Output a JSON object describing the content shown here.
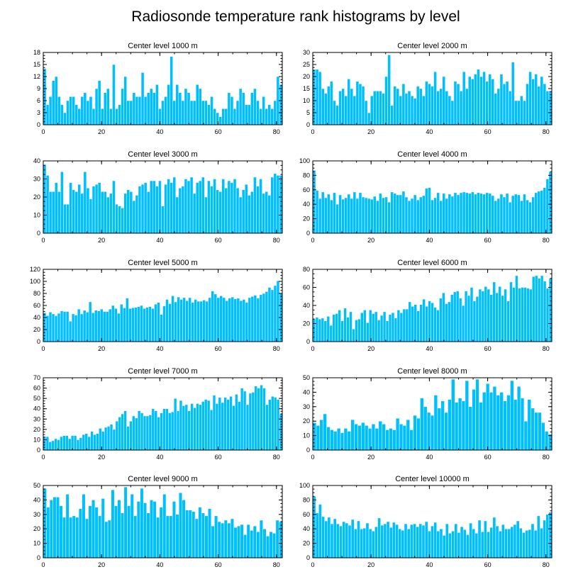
{
  "figure_title": "Radiosonde temperature rank histograms by level",
  "colors": {
    "bar": "#00bfff",
    "axis": "#000000",
    "background": "#ffffff"
  },
  "chart_data": [
    {
      "type": "bar",
      "title": "Center level 1000 m",
      "xlim": [
        0,
        82
      ],
      "ylim": [
        0,
        18
      ],
      "xticks": [
        0,
        20,
        40,
        60,
        80
      ],
      "yticks": [
        0,
        3,
        6,
        9,
        12,
        15,
        18
      ],
      "values": [
        14,
        5,
        7,
        11,
        12,
        7,
        5,
        3,
        6,
        7,
        7,
        5,
        4,
        7,
        8,
        6,
        7,
        4,
        9,
        11,
        4,
        8,
        9,
        4,
        15,
        4,
        5,
        9,
        12,
        6,
        6,
        8,
        7,
        7,
        13,
        7,
        8,
        9,
        8,
        10,
        4,
        6,
        7,
        10,
        17,
        6,
        10,
        8,
        6,
        9,
        8,
        6,
        6,
        10,
        9,
        6,
        6,
        5,
        7,
        4,
        3,
        2,
        4,
        4,
        8,
        7,
        4,
        6,
        9,
        8,
        5,
        5,
        8,
        9,
        6,
        4,
        7,
        4,
        5,
        4,
        6,
        12,
        10
      ]
    },
    {
      "type": "bar",
      "title": "Center level 2000 m",
      "xlim": [
        0,
        82
      ],
      "ylim": [
        0,
        30
      ],
      "xticks": [
        0,
        20,
        40,
        60,
        80
      ],
      "yticks": [
        0,
        5,
        10,
        15,
        20,
        25,
        30
      ],
      "values": [
        23,
        23,
        22,
        15,
        13,
        16,
        18,
        10,
        8,
        14,
        15,
        12,
        19,
        15,
        12,
        18,
        17,
        16,
        10,
        5,
        12,
        14,
        14,
        14,
        13,
        20,
        29,
        8,
        16,
        15,
        12,
        17,
        13,
        14,
        12,
        11,
        16,
        15,
        12,
        18,
        17,
        16,
        22,
        14,
        15,
        20,
        14,
        12,
        10,
        18,
        17,
        14,
        22,
        15,
        20,
        19,
        21,
        23,
        20,
        22,
        18,
        21,
        19,
        13,
        15,
        21,
        17,
        18,
        14,
        26,
        10,
        10,
        12,
        10,
        17,
        22,
        19,
        21,
        16,
        20,
        17,
        14,
        14
      ]
    },
    {
      "type": "bar",
      "title": "Center level 3000 m",
      "xlim": [
        0,
        82
      ],
      "ylim": [
        0,
        40
      ],
      "xticks": [
        0,
        20,
        40,
        60,
        80
      ],
      "yticks": [
        0,
        10,
        20,
        30,
        40
      ],
      "values": [
        38,
        32,
        23,
        23,
        28,
        23,
        34,
        16,
        16,
        28,
        24,
        23,
        27,
        22,
        34,
        25,
        19,
        26,
        27,
        28,
        23,
        23,
        20,
        22,
        29,
        16,
        15,
        14,
        22,
        24,
        23,
        18,
        21,
        26,
        27,
        28,
        23,
        29,
        29,
        26,
        29,
        15,
        27,
        30,
        28,
        31,
        20,
        25,
        26,
        30,
        29,
        31,
        22,
        28,
        29,
        31,
        20,
        29,
        26,
        30,
        24,
        23,
        30,
        25,
        29,
        28,
        30,
        25,
        20,
        24,
        27,
        21,
        23,
        31,
        26,
        30,
        22,
        23,
        21,
        31,
        33,
        32,
        32
      ]
    },
    {
      "type": "bar",
      "title": "Center level 4000 m",
      "xlim": [
        0,
        82
      ],
      "ylim": [
        0,
        100
      ],
      "xticks": [
        0,
        20,
        40,
        60,
        80
      ],
      "yticks": [
        0,
        20,
        40,
        60,
        80,
        100
      ],
      "values": [
        87,
        59,
        48,
        57,
        49,
        54,
        46,
        56,
        40,
        53,
        47,
        49,
        54,
        48,
        57,
        48,
        56,
        50,
        49,
        48,
        47,
        51,
        45,
        55,
        49,
        50,
        43,
        57,
        55,
        53,
        53,
        58,
        50,
        45,
        48,
        53,
        46,
        50,
        52,
        62,
        63,
        46,
        49,
        56,
        45,
        55,
        48,
        54,
        51,
        56,
        53,
        56,
        57,
        56,
        55,
        57,
        54,
        56,
        55,
        54,
        56,
        55,
        52,
        45,
        48,
        54,
        50,
        55,
        43,
        52,
        54,
        53,
        45,
        54,
        46,
        43,
        50,
        56,
        58,
        59,
        63,
        75,
        85
      ]
    },
    {
      "type": "bar",
      "title": "Center level 5000 m",
      "xlim": [
        0,
        82
      ],
      "ylim": [
        0,
        120
      ],
      "xticks": [
        0,
        20,
        40,
        60,
        80
      ],
      "yticks": [
        0,
        20,
        40,
        60,
        80,
        100,
        120
      ],
      "values": [
        48,
        43,
        49,
        46,
        43,
        47,
        51,
        50,
        50,
        34,
        46,
        44,
        54,
        46,
        52,
        49,
        66,
        48,
        52,
        51,
        54,
        50,
        50,
        54,
        60,
        55,
        47,
        62,
        56,
        72,
        55,
        56,
        57,
        58,
        60,
        55,
        57,
        58,
        55,
        62,
        65,
        45,
        59,
        70,
        63,
        76,
        66,
        74,
        70,
        73,
        68,
        73,
        65,
        70,
        67,
        67,
        69,
        67,
        73,
        84,
        79,
        73,
        76,
        73,
        68,
        72,
        74,
        71,
        72,
        68,
        70,
        65,
        73,
        75,
        77,
        72,
        78,
        80,
        83,
        90,
        86,
        93,
        101,
        80
      ]
    },
    {
      "type": "bar",
      "title": "Center level 6000 m",
      "xlim": [
        0,
        82
      ],
      "ylim": [
        0,
        80
      ],
      "xticks": [
        0,
        20,
        40,
        60,
        80
      ],
      "yticks": [
        0,
        20,
        40,
        60,
        80
      ],
      "values": [
        25,
        27,
        25,
        26,
        23,
        28,
        18,
        30,
        31,
        35,
        23,
        37,
        27,
        33,
        14,
        24,
        25,
        32,
        35,
        21,
        35,
        31,
        33,
        24,
        29,
        33,
        23,
        30,
        32,
        26,
        35,
        32,
        36,
        36,
        44,
        39,
        41,
        34,
        41,
        47,
        39,
        45,
        43,
        38,
        35,
        48,
        54,
        42,
        44,
        52,
        55,
        56,
        48,
        40,
        56,
        51,
        60,
        45,
        50,
        58,
        56,
        61,
        58,
        52,
        66,
        54,
        61,
        51,
        58,
        45,
        66,
        60,
        73,
        59,
        60,
        60,
        59,
        58,
        72,
        73,
        70,
        73,
        67,
        59,
        70
      ]
    },
    {
      "type": "bar",
      "title": "Center level 7000 m",
      "xlim": [
        0,
        82
      ],
      "ylim": [
        0,
        70
      ],
      "xticks": [
        0,
        20,
        40,
        60,
        80
      ],
      "yticks": [
        0,
        10,
        20,
        30,
        40,
        50,
        60,
        70
      ],
      "values": [
        13,
        13,
        8,
        9,
        11,
        10,
        13,
        14,
        14,
        11,
        14,
        14,
        10,
        12,
        15,
        16,
        13,
        18,
        15,
        16,
        21,
        18,
        22,
        23,
        25,
        20,
        28,
        32,
        35,
        38,
        23,
        28,
        33,
        31,
        38,
        36,
        33,
        33,
        34,
        40,
        38,
        32,
        36,
        40,
        40,
        36,
        37,
        50,
        38,
        48,
        43,
        44,
        38,
        45,
        41,
        45,
        44,
        47,
        49,
        48,
        39,
        53,
        45,
        51,
        46,
        51,
        49,
        52,
        43,
        54,
        47,
        60,
        57,
        44,
        55,
        56,
        62,
        60,
        63,
        60,
        44,
        49,
        52,
        51,
        49,
        35
      ]
    },
    {
      "type": "bar",
      "title": "Center level 8000 m",
      "xlim": [
        0,
        82
      ],
      "ylim": [
        0,
        50
      ],
      "xticks": [
        0,
        20,
        40,
        60,
        80
      ],
      "yticks": [
        0,
        10,
        20,
        30,
        40,
        50
      ],
      "values": [
        19,
        17,
        21,
        25,
        16,
        14,
        13,
        15,
        12,
        15,
        13,
        21,
        18,
        17,
        19,
        17,
        15,
        18,
        15,
        20,
        18,
        14,
        15,
        14,
        22,
        18,
        17,
        21,
        14,
        24,
        22,
        36,
        30,
        26,
        24,
        38,
        29,
        34,
        26,
        35,
        49,
        33,
        36,
        34,
        48,
        30,
        42,
        49,
        33,
        40,
        46,
        40,
        44,
        38,
        40,
        34,
        38,
        48,
        35,
        44,
        36,
        20,
        35,
        29,
        26,
        26,
        19,
        13,
        11
      ]
    },
    {
      "type": "bar",
      "title": "Center level 9000 m",
      "xlim": [
        0,
        82
      ],
      "ylim": [
        0,
        50
      ],
      "xticks": [
        0,
        20,
        40,
        60,
        80
      ],
      "yticks": [
        0,
        10,
        20,
        30,
        40,
        50
      ],
      "values": [
        48,
        35,
        40,
        42,
        42,
        36,
        28,
        44,
        28,
        29,
        28,
        34,
        44,
        27,
        36,
        40,
        35,
        29,
        41,
        25,
        26,
        47,
        36,
        40,
        31,
        49,
        36,
        44,
        29,
        39,
        48,
        38,
        31,
        40,
        39,
        28,
        35,
        44,
        29,
        29,
        39,
        30,
        45,
        40,
        33,
        33,
        32,
        27,
        35,
        31,
        29,
        34,
        22,
        29,
        25,
        24,
        26,
        24,
        27,
        21,
        22,
        23,
        16,
        23,
        19,
        22,
        18,
        26,
        20,
        15,
        18,
        17,
        26,
        25
      ]
    },
    {
      "type": "bar",
      "title": "Center level 10000 m",
      "xlim": [
        0,
        82
      ],
      "ylim": [
        0,
        100
      ],
      "xticks": [
        0,
        20,
        40,
        60,
        80
      ],
      "yticks": [
        0,
        20,
        40,
        60,
        80,
        100
      ],
      "values": [
        85,
        62,
        74,
        57,
        51,
        56,
        47,
        54,
        47,
        44,
        50,
        48,
        45,
        53,
        40,
        51,
        40,
        41,
        48,
        40,
        37,
        43,
        55,
        45,
        47,
        50,
        42,
        49,
        46,
        40,
        38,
        47,
        40,
        46,
        47,
        43,
        47,
        45,
        50,
        37,
        44,
        49,
        37,
        40,
        31,
        47,
        34,
        37,
        47,
        35,
        43,
        39,
        32,
        48,
        40,
        34,
        52,
        36,
        51,
        36,
        42,
        56,
        44,
        37,
        46,
        40,
        40,
        43,
        46,
        51,
        41,
        35,
        38,
        39,
        47,
        38,
        58,
        41,
        52,
        60,
        63
      ]
    }
  ]
}
